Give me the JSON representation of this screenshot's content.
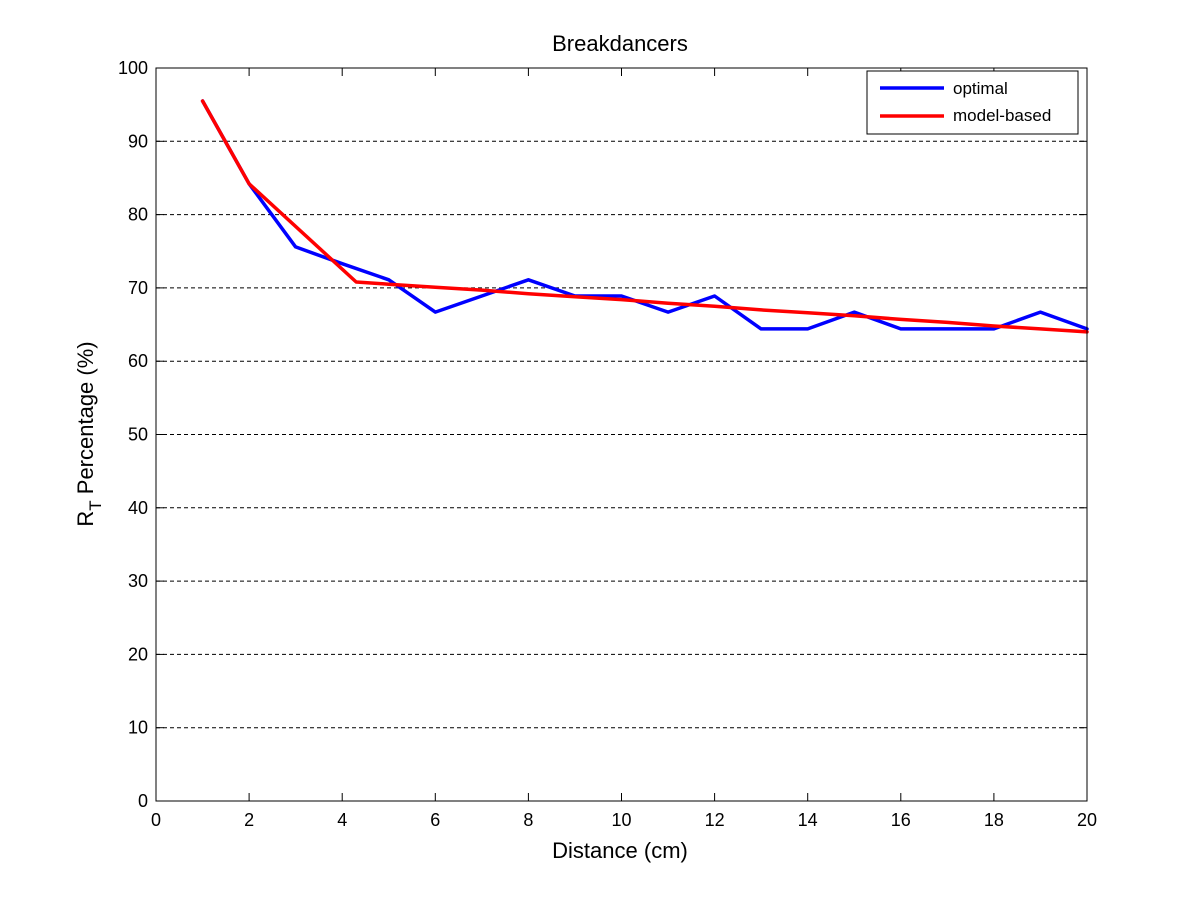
{
  "chart_data": {
    "type": "line",
    "title": "Breakdancers",
    "xlabel": "Distance (cm)",
    "ylabel": {
      "main": "R",
      "subscript": "T",
      "rest": " Percentage (%)"
    },
    "xlim": [
      0,
      20
    ],
    "ylim": [
      0,
      100
    ],
    "xticks": [
      0,
      2,
      4,
      6,
      8,
      10,
      12,
      14,
      16,
      18,
      20
    ],
    "yticks": [
      0,
      10,
      20,
      30,
      40,
      50,
      60,
      70,
      80,
      90,
      100
    ],
    "grid": "horizontal dashed",
    "legend_position": "top-right",
    "series": [
      {
        "name": "optimal",
        "color": "#0000ff",
        "x": [
          1,
          2,
          3,
          4,
          5,
          6,
          7,
          8,
          9,
          10,
          11,
          12,
          13,
          14,
          15,
          16,
          17,
          18,
          19,
          20
        ],
        "y": [
          95.5,
          84.2,
          75.6,
          73.3,
          71.1,
          66.7,
          68.9,
          71.1,
          68.9,
          68.9,
          66.7,
          68.9,
          64.4,
          64.4,
          66.7,
          64.4,
          64.4,
          64.4,
          66.7,
          64.4
        ]
      },
      {
        "name": "model-based",
        "color": "#ff0000",
        "x": [
          1,
          2,
          4.3,
          5,
          6,
          7,
          8,
          9,
          10,
          11,
          12,
          13,
          14,
          15,
          16,
          17,
          18,
          19,
          20
        ],
        "y": [
          95.5,
          84.2,
          70.8,
          70.5,
          70.1,
          69.7,
          69.2,
          68.8,
          68.4,
          67.9,
          67.5,
          67.0,
          66.6,
          66.2,
          65.7,
          65.3,
          64.8,
          64.4,
          64.0
        ]
      }
    ]
  }
}
